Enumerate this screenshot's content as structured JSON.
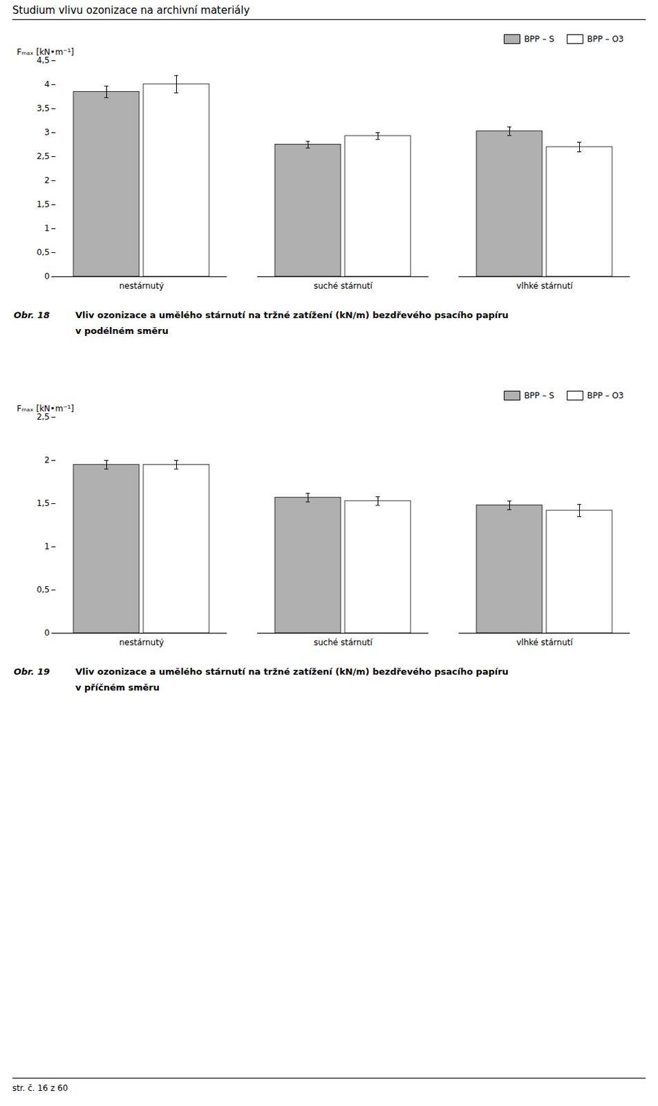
{
  "title": "Studium vlivu ozonizace na archivní materiály",
  "footer": "str. č. 16 z 60",
  "chart_data": [
    {
      "type": "bar",
      "categories": [
        "nestárnutý",
        "suché stárnutí",
        "vlhké stárnutí"
      ],
      "series": [
        {
          "name": "BPP – S",
          "color": "#b0b0b0",
          "values": [
            3.85,
            2.75,
            3.03
          ],
          "errors": [
            0.12,
            0.07,
            0.09
          ]
        },
        {
          "name": "BPP – O3",
          "color": "#ffffff",
          "values": [
            4.01,
            2.93,
            2.7
          ],
          "errors": [
            0.18,
            0.07,
            0.1
          ]
        }
      ],
      "ylabel": "Fₘₐₓ [kN•m⁻¹]",
      "ylim": [
        0,
        4.5
      ],
      "yticks": [
        0,
        {
          "value": 0.5,
          "label": "0,5"
        },
        1,
        {
          "value": 1.5,
          "label": "1,5"
        },
        2,
        {
          "value": 2.5,
          "label": "2,5"
        },
        3,
        {
          "value": 3.5,
          "label": "3,5"
        },
        4,
        {
          "value": 4.5,
          "label": "4,5"
        }
      ],
      "grid": false,
      "legend": "right",
      "caption": [
        "Obr. 18",
        "Vliv ozonizace a umělého stárnutí na tržné zatížení (kN/m) bezdřevého psacího papíru",
        "v podélném směru"
      ]
    },
    {
      "type": "bar",
      "categories": [
        "nestárnutý",
        "suché stárnutí",
        "vlhké stárnutí"
      ],
      "series": [
        {
          "name": "BPP – S",
          "color": "#b0b0b0",
          "values": [
            1.95,
            1.57,
            1.48
          ],
          "errors": [
            0.05,
            0.05,
            0.05
          ]
        },
        {
          "name": "BPP – O3",
          "color": "#ffffff",
          "values": [
            1.95,
            1.53,
            1.42
          ],
          "errors": [
            0.05,
            0.05,
            0.07
          ]
        }
      ],
      "ylabel": "Fₘₐₓ [kN•m⁻¹]",
      "ylim": [
        0,
        2.5
      ],
      "yticks": [
        0,
        {
          "value": 0.5,
          "label": "0,5"
        },
        1,
        {
          "value": 1.5,
          "label": "1,5"
        },
        2,
        {
          "value": 2.5,
          "label": "2,5"
        }
      ],
      "grid": false,
      "legend": "right",
      "caption": [
        "Obr. 19",
        "Vliv ozonizace a umělého stárnutí na tržné zatížení (kN/m) bezdřevého psacího papíru",
        "v příčném směru"
      ]
    }
  ]
}
